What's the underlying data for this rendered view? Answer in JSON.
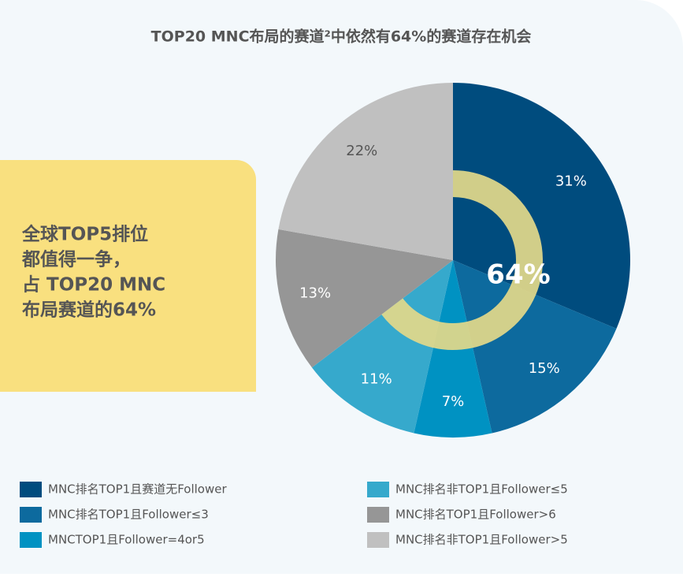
{
  "chart_data": {
    "type": "pie",
    "title": "TOP20 MNC布局的赛道²中依然有64%的赛道存在机会",
    "categories": [
      "MNC排名TOP1且赛道无Follower",
      "MNC排名TOP1且Follower≤3",
      "MNCTOP1且Follower=4or5",
      "MNC排名非TOP1且Follower≤5",
      "MNC排名TOP1且Follower>6",
      "MNC排名非TOP1且Follower>5"
    ],
    "values": [
      31,
      15,
      7,
      11,
      13,
      22
    ],
    "value_labels": [
      "31%",
      "15%",
      "7%",
      "11%",
      "13%",
      "22%"
    ],
    "colors": [
      "#004c7e",
      "#0d6a9e",
      "#0092c2",
      "#36a9cc",
      "#969696",
      "#c0c0c0"
    ],
    "highlight": {
      "value": 64,
      "label": "64%"
    },
    "callout": [
      "全球TOP5排位",
      "都值得一争，",
      "占 TOP20 MNC",
      "布局赛道的64%"
    ]
  }
}
